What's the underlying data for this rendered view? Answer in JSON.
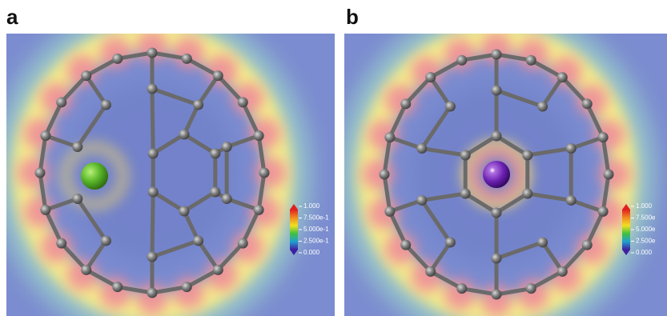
{
  "panels": [
    {
      "label": "a",
      "colorbar": [
        "1.000",
        "7.500e-1",
        "5.000e-1",
        "2.500e-1",
        "0.000"
      ]
    },
    {
      "label": "b",
      "colorbar": [
        "1.000",
        "7.500e",
        "5.000e",
        "2.500e",
        "0.000"
      ]
    }
  ]
}
